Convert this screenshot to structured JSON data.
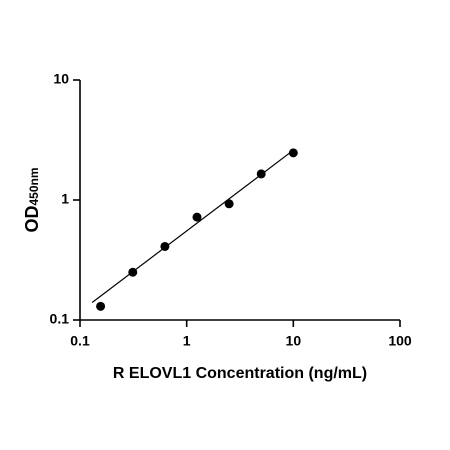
{
  "chart_data": {
    "type": "scatter",
    "xlabel": "R ELOVL1 Concentration (ng/mL)",
    "ylabel": "OD",
    "ylabel_sub": "450nm",
    "xscale": "log",
    "yscale": "log",
    "xlim": [
      0.1,
      100
    ],
    "xticks": [
      0.1,
      1,
      10,
      100
    ],
    "ylim": [
      0.1,
      10
    ],
    "yticks": [
      0.1,
      1,
      10
    ],
    "series": [
      {
        "x": [
          0.156,
          0.3125,
          0.625,
          1.25,
          2.5,
          5,
          10
        ],
        "values": [
          0.13,
          0.25,
          0.41,
          0.72,
          0.93,
          1.65,
          2.47
        ],
        "color": "#000000"
      }
    ],
    "fit": {
      "x": [
        0.13,
        10
      ],
      "values": [
        0.14,
        2.6
      ],
      "color": "#000000"
    }
  }
}
